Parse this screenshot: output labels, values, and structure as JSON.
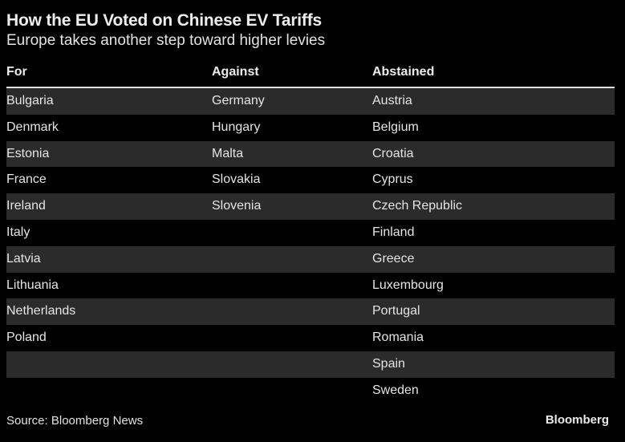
{
  "chart_data": {
    "type": "table",
    "title": "How the EU Voted on Chinese EV Tariffs",
    "subtitle": "Europe takes another step toward higher levies",
    "columns": [
      "For",
      "Against",
      "Abstained"
    ],
    "rows": [
      [
        "Bulgaria",
        "Germany",
        "Austria"
      ],
      [
        "Denmark",
        "Hungary",
        "Belgium"
      ],
      [
        "Estonia",
        "Malta",
        "Croatia"
      ],
      [
        "France",
        "Slovakia",
        "Cyprus"
      ],
      [
        "Ireland",
        "Slovenia",
        "Czech Republic"
      ],
      [
        "Italy",
        "",
        "Finland"
      ],
      [
        "Latvia",
        "",
        "Greece"
      ],
      [
        "Lithuania",
        "",
        "Luxembourg"
      ],
      [
        "Netherlands",
        "",
        "Portugal"
      ],
      [
        "Poland",
        "",
        "Romania"
      ],
      [
        "",
        "",
        "Spain"
      ],
      [
        "",
        "",
        "Sweden"
      ]
    ],
    "source": "Source: Bloomberg News",
    "brand": "Bloomberg"
  },
  "colors": {
    "background": "#000000",
    "stripe": "#2b2b2b",
    "text": "#e4e4e4",
    "header_rule": "#e0e0e0"
  }
}
